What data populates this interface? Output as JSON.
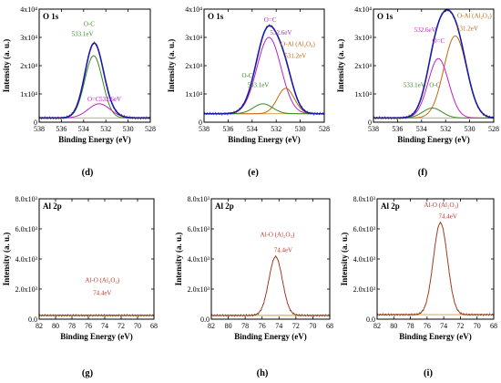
{
  "colors": {
    "envelope": "#1a1aaa",
    "raw": "#7a3a10",
    "o_c": "#3a8a20",
    "o_eq_c": "#c020c0",
    "o_al": "#c06a10",
    "background": "#c8a030",
    "al_fit": "#c0392b"
  },
  "chart_data": [
    {
      "type": "line",
      "panel_tag": "(d)",
      "name": "O 1s",
      "xlabel": "Binding Energy (eV)",
      "ylabel": "Intensity (a. u.)",
      "x_reversed": true,
      "xlim": [
        538,
        528
      ],
      "xticks": [
        "538",
        "536",
        "534",
        "532",
        "530",
        "528"
      ],
      "ylim": [
        0,
        40000
      ],
      "yticks": [
        {
          "value": 0,
          "label": "0"
        },
        {
          "value": 10000,
          "label": "1x10⁴"
        },
        {
          "value": 20000,
          "label": "2x10⁴"
        },
        {
          "value": 30000,
          "label": "3x10⁴"
        },
        {
          "value": 40000,
          "label": "4x10⁴"
        }
      ],
      "background": 1500,
      "components": [
        {
          "key": "o_c",
          "center": 533.1,
          "height": 22000,
          "width": 0.8
        },
        {
          "key": "o_eq_c",
          "center": 532.6,
          "height": 5000,
          "width": 1.0
        }
      ],
      "envelope": true,
      "labels": [
        {
          "text": "O-C",
          "x": 533.5,
          "y": 34000,
          "color_key": "o_c"
        },
        {
          "text": "533.1eV",
          "x": 534.1,
          "y": 30500,
          "color_key": "o_c"
        },
        {
          "text": "O=C",
          "x": 533.1,
          "y": 7500,
          "color_key": "o_eq_c"
        },
        {
          "text": "532.6eV",
          "x": 531.6,
          "y": 7500,
          "color_key": "o_eq_c"
        }
      ]
    },
    {
      "type": "line",
      "panel_tag": "(e)",
      "name": "O 1s",
      "xlabel": "Binding Energy (eV)",
      "ylabel": "Intensity (a. u.)",
      "x_reversed": true,
      "xlim": [
        538,
        528
      ],
      "xticks": [
        "538",
        "536",
        "534",
        "532",
        "530",
        "528"
      ],
      "ylim": [
        0,
        40000
      ],
      "yticks": [
        {
          "value": 0,
          "label": "0"
        },
        {
          "value": 10000,
          "label": "1x10⁴"
        },
        {
          "value": 20000,
          "label": "2x10⁴"
        },
        {
          "value": 30000,
          "label": "3x10⁴"
        },
        {
          "value": 40000,
          "label": "4x10⁴"
        }
      ],
      "background": 3000,
      "components": [
        {
          "key": "o_eq_c",
          "center": 532.6,
          "height": 27000,
          "width": 1.0
        },
        {
          "key": "o_al",
          "center": 531.2,
          "height": 9000,
          "width": 0.7
        },
        {
          "key": "o_c",
          "center": 533.1,
          "height": 3500,
          "width": 0.8
        }
      ],
      "envelope": true,
      "labels": [
        {
          "text": "O=C",
          "x": 532.5,
          "y": 35500,
          "color_key": "o_eq_c"
        },
        {
          "text": "532.6eV",
          "x": 531.6,
          "y": 31000,
          "color_key": "o_eq_c"
        },
        {
          "text": "O-Al (Al₂O₃)",
          "x": 530.2,
          "y": 27000,
          "color_key": "o_al"
        },
        {
          "text": "531.2eV",
          "x": 530.4,
          "y": 22800,
          "color_key": "o_al"
        },
        {
          "text": "O-C",
          "x": 534.4,
          "y": 15800,
          "color_key": "o_c"
        },
        {
          "text": "533.1eV",
          "x": 533.5,
          "y": 12500,
          "color_key": "o_c"
        }
      ]
    },
    {
      "type": "line",
      "panel_tag": "(f)",
      "name": "O 1s",
      "xlabel": "Binding Energy (eV)",
      "ylabel": "Intensity (a. u.)",
      "x_reversed": true,
      "xlim": [
        538,
        528
      ],
      "xticks": [
        "538",
        "536",
        "534",
        "532",
        "530",
        "528"
      ],
      "ylim": [
        0,
        40000
      ],
      "yticks": [
        {
          "value": 0,
          "label": "0"
        },
        {
          "value": 10000,
          "label": "1x10⁴"
        },
        {
          "value": 20000,
          "label": "2x10⁴"
        },
        {
          "value": 30000,
          "label": "3x10⁴"
        },
        {
          "value": 40000,
          "label": "4x10⁴"
        }
      ],
      "background": 1500,
      "components": [
        {
          "key": "o_al",
          "center": 531.2,
          "height": 29000,
          "width": 0.95
        },
        {
          "key": "o_eq_c",
          "center": 532.6,
          "height": 21000,
          "width": 0.85
        },
        {
          "key": "o_c",
          "center": 533.1,
          "height": 3500,
          "width": 0.8
        }
      ],
      "envelope": true,
      "labels": [
        {
          "text": "O-Al (Al₂O₃)",
          "x": 529.6,
          "y": 37000,
          "color_key": "o_al"
        },
        {
          "text": "531.2eV",
          "x": 530.2,
          "y": 32500,
          "color_key": "o_al"
        },
        {
          "text": "O=C",
          "x": 532.6,
          "y": 28000,
          "color_key": "o_eq_c"
        },
        {
          "text": "532.6eV",
          "x": 533.7,
          "y": 32000,
          "color_key": "o_eq_c"
        },
        {
          "text": "533.1eV",
          "x": 534.6,
          "y": 12500,
          "color_key": "o_c"
        },
        {
          "text": "O-C",
          "x": 532.9,
          "y": 12500,
          "color_key": "o_c"
        }
      ]
    },
    {
      "type": "line",
      "panel_tag": "(g)",
      "name": "Al 2p",
      "xlabel": "Binding Energy (eV)",
      "ylabel": "Intensity (a. u.)",
      "x_reversed": true,
      "xlim": [
        82,
        68
      ],
      "xticks": [
        "82",
        "80",
        "78",
        "76",
        "74",
        "72",
        "70",
        "68"
      ],
      "ylim": [
        0,
        8000
      ],
      "yticks": [
        {
          "value": 0,
          "label": "0.0"
        },
        {
          "value": 2000,
          "label": "2.0x10³"
        },
        {
          "value": 4000,
          "label": "4.0x10³"
        },
        {
          "value": 6000,
          "label": "6.0x10³"
        },
        {
          "value": 8000,
          "label": "8.0x10³"
        }
      ],
      "background": 250,
      "components": [],
      "raw_peak": {
        "center": 74.4,
        "height": 0,
        "width": 0.6
      },
      "labels": [
        {
          "text": "Al-O (Al₂O₃)",
          "x": 74.3,
          "y": 2450,
          "color_key": "al_fit"
        },
        {
          "text": "74.4eV",
          "x": 74.3,
          "y": 1600,
          "color_key": "al_fit"
        }
      ]
    },
    {
      "type": "line",
      "panel_tag": "(h)",
      "name": "Al 2p",
      "xlabel": "Binding Energy (eV)",
      "ylabel": "Intensity (a. u.)",
      "x_reversed": true,
      "xlim": [
        82,
        68
      ],
      "xticks": [
        "82",
        "80",
        "78",
        "76",
        "74",
        "72",
        "70",
        "68"
      ],
      "ylim": [
        0,
        8000
      ],
      "yticks": [
        {
          "value": 0,
          "label": "0.0"
        },
        {
          "value": 2000,
          "label": "2.0x10³"
        },
        {
          "value": 4000,
          "label": "4.0x10³"
        },
        {
          "value": 6000,
          "label": "6.0x10³"
        },
        {
          "value": 8000,
          "label": "8.0x10³"
        }
      ],
      "background": 250,
      "components": [],
      "raw_peak": {
        "center": 74.4,
        "height": 3900,
        "width": 0.8
      },
      "labels": [
        {
          "text": "Al-O (Al₂O₃)",
          "x": 74.2,
          "y": 5500,
          "color_key": "al_fit"
        },
        {
          "text": "74.4eV",
          "x": 73.5,
          "y": 4450,
          "color_key": "al_fit"
        }
      ]
    },
    {
      "type": "line",
      "panel_tag": "(i)",
      "name": "Al 2p",
      "xlabel": "Binding Energy (eV)",
      "ylabel": "Intensity (a. u.)",
      "x_reversed": true,
      "xlim": [
        82,
        68
      ],
      "xticks": [
        "82",
        "80",
        "78",
        "76",
        "74",
        "72",
        "70",
        "68"
      ],
      "ylim": [
        0,
        8000
      ],
      "yticks": [
        {
          "value": 0,
          "label": "0.0"
        },
        {
          "value": 2000,
          "label": "2.0x10³"
        },
        {
          "value": 4000,
          "label": "4.0x10³"
        },
        {
          "value": 6000,
          "label": "6.0x10³"
        },
        {
          "value": 8000,
          "label": "8.0x10³"
        }
      ],
      "background": 300,
      "components": [],
      "raw_peak": {
        "center": 74.4,
        "height": 6100,
        "width": 0.85
      },
      "labels": [
        {
          "text": "Al-O (Al₂O₃)",
          "x": 74.3,
          "y": 7450,
          "color_key": "al_fit"
        },
        {
          "text": "74.4eV",
          "x": 73.5,
          "y": 6700,
          "color_key": "al_fit"
        }
      ]
    }
  ]
}
